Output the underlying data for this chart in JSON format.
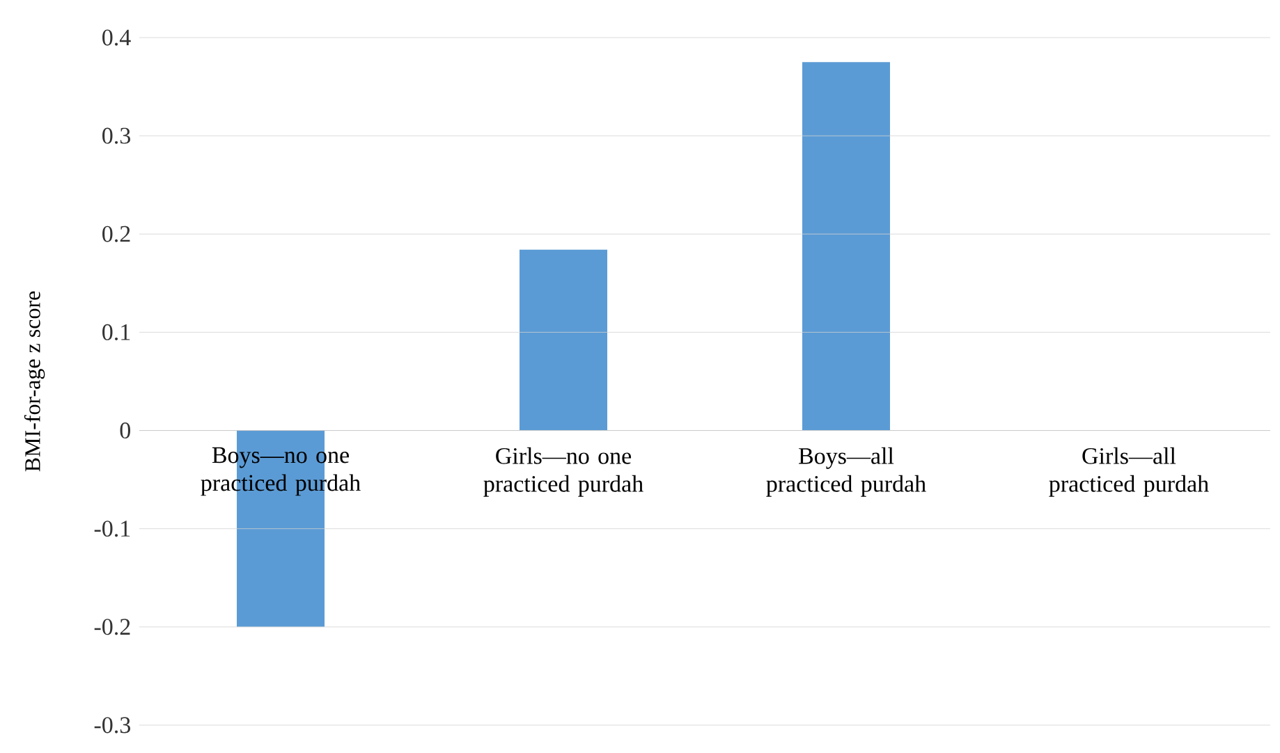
{
  "chart_data": {
    "type": "bar",
    "ylabel": "BMI-for-age z score",
    "categories": [
      "Boys—no one practiced purdah",
      "Girls—no one practiced purdah",
      "Boys—all practiced purdah",
      "Girls—all practiced purdah"
    ],
    "values": [
      -0.2,
      0.184,
      0.375,
      0
    ],
    "color": "#5b9bd5",
    "ylim": [
      -0.3,
      0.4
    ],
    "yticks": [
      -0.3,
      -0.2,
      -0.1,
      0,
      0.1,
      0.2,
      0.3,
      0.4
    ],
    "grid": "y"
  }
}
